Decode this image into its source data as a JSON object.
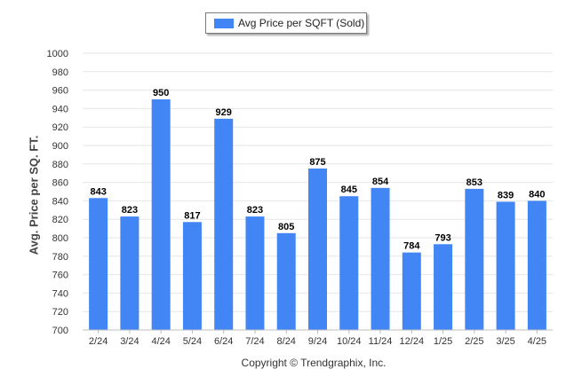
{
  "legend": {
    "label": "Avg Price per SQFT (Sold)",
    "color": "#4285f4"
  },
  "copyright": "Copyright © Trendgraphix, Inc.",
  "chart_data": {
    "type": "bar",
    "title": "",
    "xlabel": "",
    "ylabel": "Avg. Price per SQ. FT.",
    "ylim": [
      700,
      1000
    ],
    "yticks": [
      700,
      720,
      740,
      760,
      780,
      800,
      820,
      840,
      860,
      880,
      900,
      920,
      940,
      960,
      980,
      1000
    ],
    "grid": true,
    "legend_position": "top-center",
    "bar_color": "#4285f4",
    "categories": [
      "2/24",
      "3/24",
      "4/24",
      "5/24",
      "6/24",
      "7/24",
      "8/24",
      "9/24",
      "10/24",
      "11/24",
      "12/24",
      "1/25",
      "2/25",
      "3/25",
      "4/25"
    ],
    "series": [
      {
        "name": "Avg Price per SQFT (Sold)",
        "values": [
          843,
          823,
          950,
          817,
          929,
          823,
          805,
          875,
          845,
          854,
          784,
          793,
          853,
          839,
          840
        ]
      }
    ]
  }
}
